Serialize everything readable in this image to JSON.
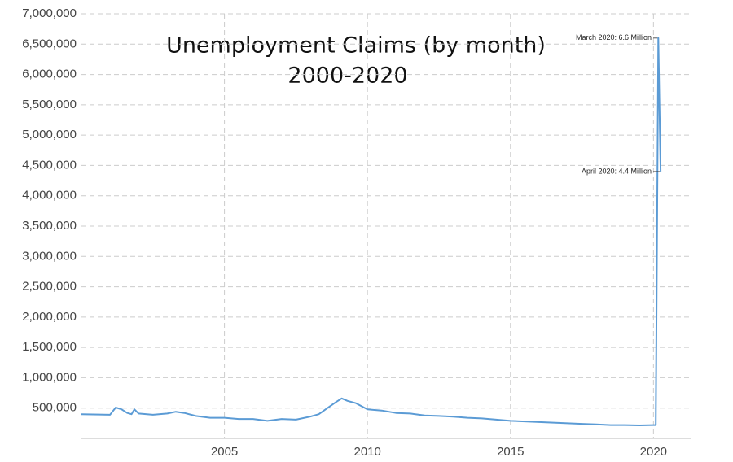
{
  "chart_data": {
    "type": "line",
    "title": [
      "Unemployment Claims (by month)",
      "2000-2020"
    ],
    "color": "#5b9bd5",
    "x": [
      2000.0,
      2001.0,
      2001.2,
      2001.4,
      2001.6,
      2001.75,
      2001.85,
      2002.0,
      2002.5,
      2003.0,
      2003.3,
      2003.6,
      2004.0,
      2004.5,
      2005.0,
      2005.5,
      2006.0,
      2006.5,
      2007.0,
      2007.5,
      2008.0,
      2008.3,
      2008.6,
      2008.9,
      2009.1,
      2009.3,
      2009.6,
      2010.0,
      2010.5,
      2011.0,
      2011.5,
      2012.0,
      2012.5,
      2013.0,
      2013.5,
      2014.0,
      2014.5,
      2015.0,
      2015.5,
      2016.0,
      2016.5,
      2017.0,
      2017.5,
      2018.0,
      2018.5,
      2019.0,
      2019.5,
      2020.0,
      2020.08,
      2020.17,
      2020.25
    ],
    "values": [
      400000,
      390000,
      510000,
      480000,
      420000,
      400000,
      480000,
      410000,
      390000,
      410000,
      440000,
      420000,
      370000,
      340000,
      340000,
      320000,
      320000,
      290000,
      320000,
      310000,
      360000,
      400000,
      500000,
      600000,
      660000,
      620000,
      580000,
      480000,
      460000,
      420000,
      410000,
      380000,
      370000,
      360000,
      340000,
      330000,
      310000,
      290000,
      280000,
      270000,
      260000,
      250000,
      240000,
      230000,
      220000,
      220000,
      215000,
      220000,
      220000,
      6600000,
      4400000
    ],
    "xlim": [
      2000,
      2021.3
    ],
    "ylim": [
      0,
      7000000
    ],
    "xticks": [
      2005,
      2010,
      2015,
      2020
    ],
    "yticks": [
      {
        "value": 500000,
        "label": "500,000"
      },
      {
        "value": 1000000,
        "label": "1,000,000"
      },
      {
        "value": 1500000,
        "label": "1,500,000"
      },
      {
        "value": 2000000,
        "label": "2,000,000"
      },
      {
        "value": 2500000,
        "label": "2,500,000"
      },
      {
        "value": 3000000,
        "label": "3,000,000"
      },
      {
        "value": 3500000,
        "label": "3,500,000"
      },
      {
        "value": 4000000,
        "label": "4,000,000"
      },
      {
        "value": 4500000,
        "label": "4,500,000"
      },
      {
        "value": 5000000,
        "label": "5,000,000"
      },
      {
        "value": 5500000,
        "label": "5,500,000"
      },
      {
        "value": 6000000,
        "label": "6,000,000"
      },
      {
        "value": 6500000,
        "label": "6,500,000"
      },
      {
        "value": 7000000,
        "label": "7,000,000"
      }
    ],
    "grid": true,
    "annotations": [
      "March 2020: 6.6 Million",
      "April 2020: 4.4 Million"
    ]
  }
}
